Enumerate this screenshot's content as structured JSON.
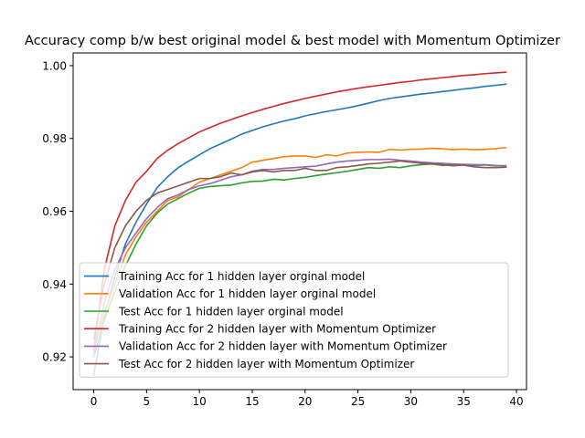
{
  "chart_data": {
    "type": "line",
    "title": "Accuracy comp b/w best original model & best model with Momentum Optimizer",
    "xlabel": "",
    "ylabel": "",
    "xlim": [
      -1.95,
      40.95
    ],
    "ylim": [
      0.911,
      1.0035
    ],
    "xticks": [
      0,
      5,
      10,
      15,
      20,
      25,
      30,
      35,
      40
    ],
    "yticks": [
      0.92,
      0.94,
      0.96,
      0.98,
      1.0
    ],
    "ytick_labels": [
      "0.92",
      "0.94",
      "0.96",
      "0.98",
      "1.00"
    ],
    "grid": false,
    "legend_position": "lower-left",
    "x": [
      0,
      1,
      2,
      3,
      4,
      5,
      6,
      7,
      8,
      9,
      10,
      11,
      12,
      13,
      14,
      15,
      16,
      17,
      18,
      19,
      20,
      21,
      22,
      23,
      24,
      25,
      26,
      27,
      28,
      29,
      30,
      31,
      32,
      33,
      34,
      35,
      36,
      37,
      38,
      39
    ],
    "series": [
      {
        "name": "Training Acc for 1 hidden layer orginal model",
        "color": "#1f77b4",
        "values": [
          0.915,
          0.931,
          0.942,
          0.951,
          0.957,
          0.962,
          0.9665,
          0.9695,
          0.972,
          0.9738,
          0.9755,
          0.9772,
          0.9785,
          0.9798,
          0.9812,
          0.9822,
          0.9832,
          0.984,
          0.9848,
          0.9854,
          0.9862,
          0.9868,
          0.9874,
          0.9879,
          0.9884,
          0.989,
          0.9897,
          0.9904,
          0.991,
          0.9914,
          0.9918,
          0.9922,
          0.9925,
          0.9929,
          0.9932,
          0.9936,
          0.9939,
          0.9943,
          0.9946,
          0.9949
        ]
      },
      {
        "name": "Validation Acc for 1 hidden layer orginal model",
        "color": "#ff7f0e",
        "values": [
          0.922,
          0.932,
          0.94,
          0.948,
          0.953,
          0.957,
          0.96,
          0.963,
          0.964,
          0.966,
          0.968,
          0.969,
          0.97,
          0.971,
          0.972,
          0.9735,
          0.974,
          0.9745,
          0.975,
          0.9752,
          0.9752,
          0.9748,
          0.9755,
          0.9752,
          0.976,
          0.9762,
          0.9763,
          0.9762,
          0.977,
          0.9768,
          0.977,
          0.9771,
          0.9773,
          0.9772,
          0.9769,
          0.9771,
          0.9769,
          0.977,
          0.9772,
          0.9775
        ]
      },
      {
        "name": "Test Acc for 1 hidden layer orginal model",
        "color": "#2ca02c",
        "values": [
          0.92,
          0.93,
          0.938,
          0.945,
          0.951,
          0.956,
          0.9595,
          0.962,
          0.9635,
          0.965,
          0.9663,
          0.9668,
          0.967,
          0.9672,
          0.9678,
          0.9682,
          0.9683,
          0.9688,
          0.9686,
          0.969,
          0.9693,
          0.9698,
          0.9702,
          0.9706,
          0.971,
          0.9715,
          0.972,
          0.9718,
          0.9722,
          0.972,
          0.9725,
          0.9728,
          0.973,
          0.9726,
          0.9728,
          0.9727,
          0.9726,
          0.9727,
          0.9725,
          0.9725
        ]
      },
      {
        "name": "Training Acc for 2 hidden layer with Momentum Optimizer",
        "color": "#d62728",
        "values": [
          0.922,
          0.944,
          0.956,
          0.963,
          0.968,
          0.971,
          0.9745,
          0.9768,
          0.9786,
          0.9802,
          0.9818,
          0.983,
          0.9842,
          0.9852,
          0.9862,
          0.9871,
          0.988,
          0.9888,
          0.9896,
          0.9903,
          0.991,
          0.9916,
          0.9922,
          0.9928,
          0.9933,
          0.9938,
          0.9942,
          0.9946,
          0.995,
          0.9954,
          0.9957,
          0.9961,
          0.9964,
          0.9967,
          0.997,
          0.9973,
          0.9975,
          0.9978,
          0.998,
          0.9982
        ]
      },
      {
        "name": "Validation Acc for 2 hidden layer with Momentum Optimizer",
        "color": "#9467bd",
        "values": [
          0.921,
          0.935,
          0.944,
          0.95,
          0.954,
          0.958,
          0.961,
          0.9635,
          0.9645,
          0.966,
          0.967,
          0.9676,
          0.9685,
          0.9695,
          0.97,
          0.971,
          0.9715,
          0.9715,
          0.9718,
          0.972,
          0.9722,
          0.9724,
          0.973,
          0.9735,
          0.9738,
          0.974,
          0.9742,
          0.9742,
          0.9743,
          0.974,
          0.9738,
          0.9735,
          0.9733,
          0.9732,
          0.973,
          0.9729,
          0.9728,
          0.9728,
          0.9726,
          0.9725
        ]
      },
      {
        "name": "Test Acc for 2 hidden layer with Momentum Optimizer",
        "color": "#8c564b",
        "values": [
          0.925,
          0.94,
          0.95,
          0.956,
          0.96,
          0.963,
          0.965,
          0.966,
          0.967,
          0.968,
          0.969,
          0.969,
          0.9695,
          0.9705,
          0.97,
          0.9708,
          0.9712,
          0.9708,
          0.9712,
          0.9712,
          0.9718,
          0.9712,
          0.9712,
          0.972,
          0.9722,
          0.9726,
          0.973,
          0.9732,
          0.9735,
          0.9738,
          0.9735,
          0.9732,
          0.973,
          0.9728,
          0.9725,
          0.9727,
          0.9722,
          0.972,
          0.972,
          0.9721
        ]
      }
    ]
  }
}
